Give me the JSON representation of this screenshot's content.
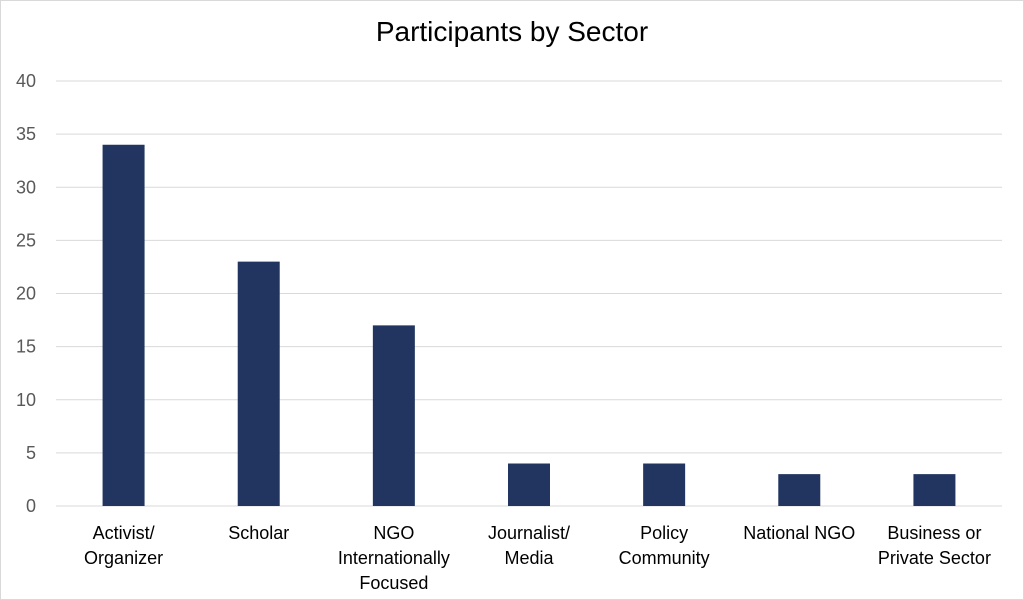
{
  "chart_data": {
    "type": "bar",
    "title": "Participants by Sector",
    "categories": [
      [
        "Activist/",
        "Organizer"
      ],
      [
        "Scholar"
      ],
      [
        "NGO",
        "Internationally",
        "Focused"
      ],
      [
        "Journalist/",
        "Media"
      ],
      [
        "Policy",
        "Community"
      ],
      [
        "National NGO"
      ],
      [
        "Business or",
        "Private Sector"
      ]
    ],
    "values": [
      34,
      23,
      17,
      4,
      4,
      3,
      3
    ],
    "yticks": [
      "0",
      "5",
      "10",
      "15",
      "20",
      "25",
      "30",
      "35",
      "40"
    ],
    "ylim": [
      0,
      40
    ],
    "grid": true,
    "bar_color": "#223561",
    "grid_color": "#d9d9d9"
  }
}
